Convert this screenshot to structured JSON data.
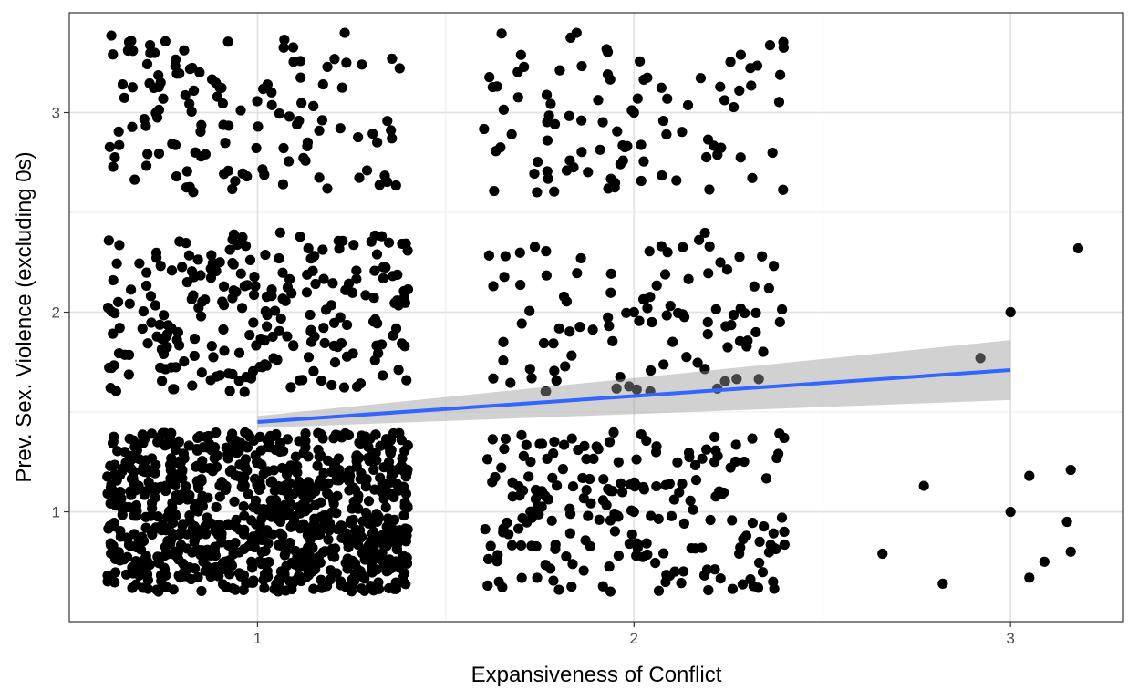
{
  "chart_data": {
    "type": "scatter",
    "title": "",
    "xlabel": "Expansiveness of Conflict",
    "ylabel": "Prev. Sex. Violence (excluding 0s)",
    "xlim": [
      0.5,
      3.3
    ],
    "ylim": [
      0.45,
      3.5
    ],
    "x_ticks": [
      1,
      2,
      3
    ],
    "y_ticks": [
      1,
      2,
      3
    ],
    "grid": true,
    "legend": "none",
    "point_color": "#000000",
    "jitter": {
      "x_width": 0.4,
      "y_height": 0.4
    },
    "groups": [
      {
        "x": 1,
        "y": 1,
        "n": 900
      },
      {
        "x": 1,
        "y": 2,
        "n": 240
      },
      {
        "x": 1,
        "y": 3,
        "n": 130
      },
      {
        "x": 2,
        "y": 1,
        "n": 210
      },
      {
        "x": 2,
        "y": 2,
        "n": 100
      },
      {
        "x": 2,
        "y": 3,
        "n": 95
      }
    ],
    "points": [
      [
        2.92,
        1.77
      ],
      [
        3.18,
        2.32
      ],
      [
        3.0,
        2.0
      ],
      [
        3.0,
        1.0
      ],
      [
        2.66,
        0.79
      ],
      [
        2.77,
        1.13
      ],
      [
        2.82,
        0.64
      ],
      [
        3.05,
        1.18
      ],
      [
        3.05,
        0.67
      ],
      [
        3.09,
        0.75
      ],
      [
        3.15,
        0.95
      ],
      [
        3.16,
        0.8
      ],
      [
        3.16,
        1.21
      ],
      [
        2.0,
        3.0
      ],
      [
        2.0,
        2.0
      ],
      [
        2.0,
        1.0
      ]
    ],
    "fit": {
      "method": "lm",
      "line_color": "#3366ff",
      "band_color": "#999999",
      "x": [
        1,
        3
      ],
      "y": [
        1.45,
        1.71
      ],
      "ci_lower": [
        1.42,
        1.56
      ],
      "ci_upper": [
        1.48,
        1.86
      ]
    }
  }
}
